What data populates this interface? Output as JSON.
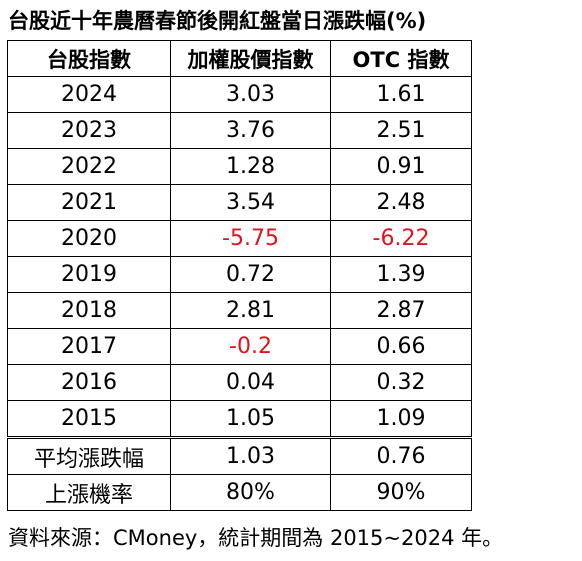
{
  "title": "台股近十年農曆春節後開紅盤當日漲跌幅(%)",
  "headers": [
    "台股指數",
    "加權股價指數",
    "OTC 指數"
  ],
  "rows": [
    {
      "year": "2024",
      "taiex": "3.03",
      "otc": "1.61",
      "taiex_neg": false,
      "otc_neg": false
    },
    {
      "year": "2023",
      "taiex": "3.76",
      "otc": "2.51",
      "taiex_neg": false,
      "otc_neg": false
    },
    {
      "year": "2022",
      "taiex": "1.28",
      "otc": "0.91",
      "taiex_neg": false,
      "otc_neg": false
    },
    {
      "year": "2021",
      "taiex": "3.54",
      "otc": "2.48",
      "taiex_neg": false,
      "otc_neg": false
    },
    {
      "year": "2020",
      "taiex": "-5.75",
      "otc": "-6.22",
      "taiex_neg": true,
      "otc_neg": true
    },
    {
      "year": "2019",
      "taiex": "0.72",
      "otc": "1.39",
      "taiex_neg": false,
      "otc_neg": false
    },
    {
      "year": "2018",
      "taiex": "2.81",
      "otc": "2.87",
      "taiex_neg": false,
      "otc_neg": false
    },
    {
      "year": "2017",
      "taiex": "-0.2",
      "otc": "0.66",
      "taiex_neg": true,
      "otc_neg": false
    },
    {
      "year": "2016",
      "taiex": "0.04",
      "otc": "0.32",
      "taiex_neg": false,
      "otc_neg": false
    },
    {
      "year": "2015",
      "taiex": "1.05",
      "otc": "1.09",
      "taiex_neg": false,
      "otc_neg": false
    }
  ],
  "summary": [
    {
      "label": "平均漲跌幅",
      "taiex": "1.03",
      "otc": "0.76"
    },
    {
      "label": "上漲機率",
      "taiex": "80%",
      "otc": "90%"
    }
  ],
  "source": "資料來源：CMoney，統計期間為 2015~2024 年。",
  "colors": {
    "negative": "#e0141e",
    "text": "#000000",
    "border": "#000000"
  }
}
